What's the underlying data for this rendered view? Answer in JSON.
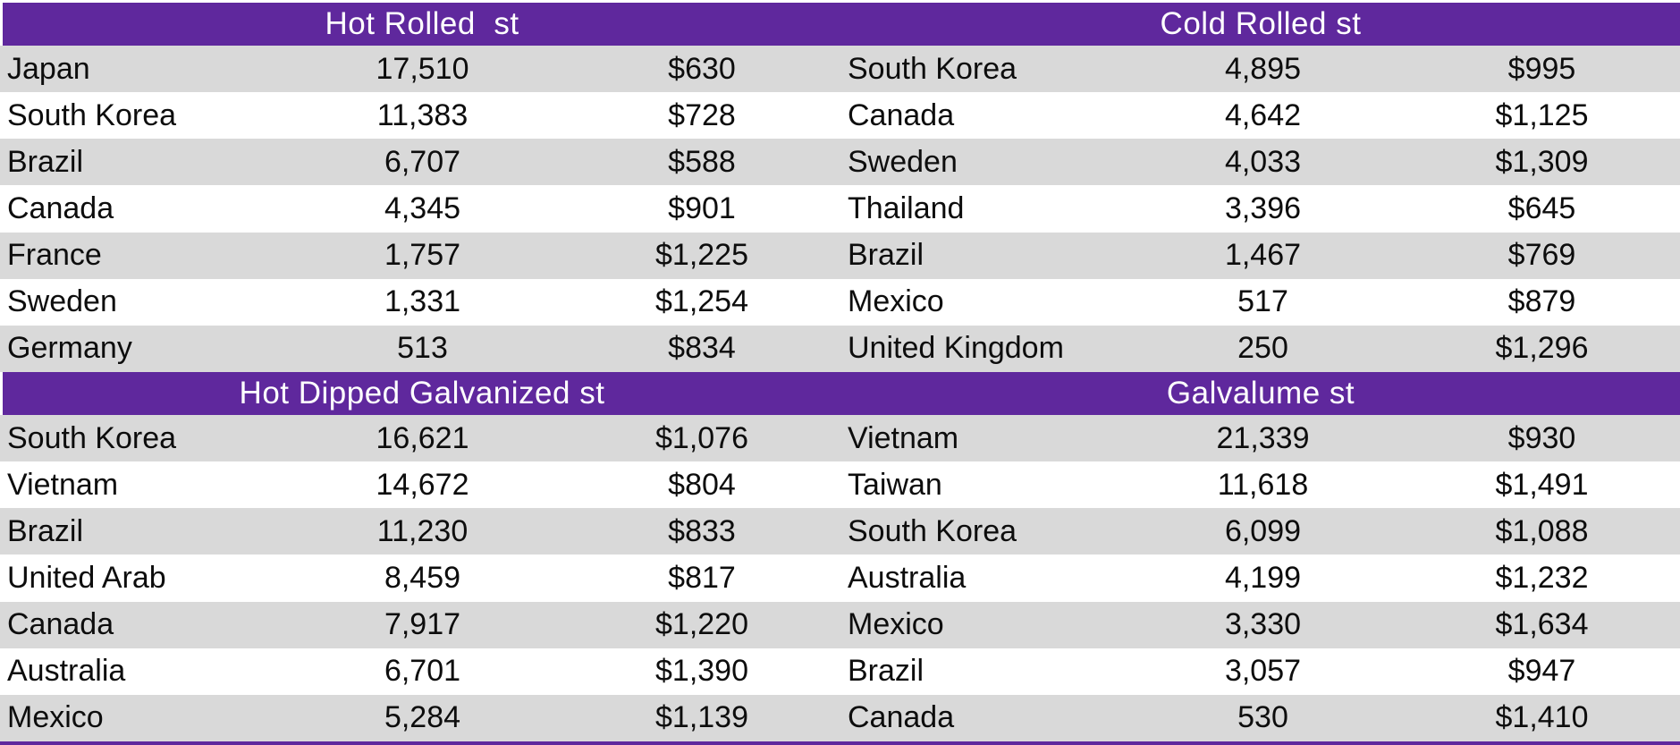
{
  "colors": {
    "header_bg": "#5F289D",
    "header_text": "#FFFFFF",
    "row_shaded": "#D9D9D9",
    "row_plain": "#FFFFFF",
    "body_text": "#0D0D0D"
  },
  "sections": [
    {
      "title": "Hot Rolled  st",
      "rows": [
        {
          "country": "Japan",
          "qty": "17,510",
          "price": "$630"
        },
        {
          "country": "South Korea",
          "qty": "11,383",
          "price": "$728"
        },
        {
          "country": "Brazil",
          "qty": "6,707",
          "price": "$588"
        },
        {
          "country": "Canada",
          "qty": "4,345",
          "price": "$901"
        },
        {
          "country": "France",
          "qty": "1,757",
          "price": "$1,225"
        },
        {
          "country": "Sweden",
          "qty": "1,331",
          "price": "$1,254"
        },
        {
          "country": "Germany",
          "qty": "513",
          "price": "$834"
        }
      ]
    },
    {
      "title": "Cold Rolled st",
      "rows": [
        {
          "country": "South Korea",
          "qty": "4,895",
          "price": "$995"
        },
        {
          "country": "Canada",
          "qty": "4,642",
          "price": "$1,125"
        },
        {
          "country": "Sweden",
          "qty": "4,033",
          "price": "$1,309"
        },
        {
          "country": "Thailand",
          "qty": "3,396",
          "price": "$645"
        },
        {
          "country": "Brazil",
          "qty": "1,467",
          "price": "$769"
        },
        {
          "country": "Mexico",
          "qty": "517",
          "price": "$879"
        },
        {
          "country": "United Kingdom",
          "qty": "250",
          "price": "$1,296"
        }
      ]
    },
    {
      "title": "Hot Dipped Galvanized st",
      "rows": [
        {
          "country": "South Korea",
          "qty": "16,621",
          "price": "$1,076"
        },
        {
          "country": "Vietnam",
          "qty": "14,672",
          "price": "$804"
        },
        {
          "country": "Brazil",
          "qty": "11,230",
          "price": "$833"
        },
        {
          "country": "United Arab",
          "qty": "8,459",
          "price": "$817"
        },
        {
          "country": "Canada",
          "qty": "7,917",
          "price": "$1,220"
        },
        {
          "country": "Australia",
          "qty": "6,701",
          "price": "$1,390"
        },
        {
          "country": "Mexico",
          "qty": "5,284",
          "price": "$1,139"
        }
      ]
    },
    {
      "title": "Galvalume st",
      "rows": [
        {
          "country": "Vietnam",
          "qty": "21,339",
          "price": "$930"
        },
        {
          "country": "Taiwan",
          "qty": "11,618",
          "price": "$1,491"
        },
        {
          "country": "South Korea",
          "qty": "6,099",
          "price": "$1,088"
        },
        {
          "country": "Australia",
          "qty": "4,199",
          "price": "$1,232"
        },
        {
          "country": "Mexico",
          "qty": "3,330",
          "price": "$1,634"
        },
        {
          "country": "Brazil",
          "qty": "3,057",
          "price": "$947"
        },
        {
          "country": "Canada",
          "qty": "530",
          "price": "$1,410"
        }
      ]
    }
  ]
}
